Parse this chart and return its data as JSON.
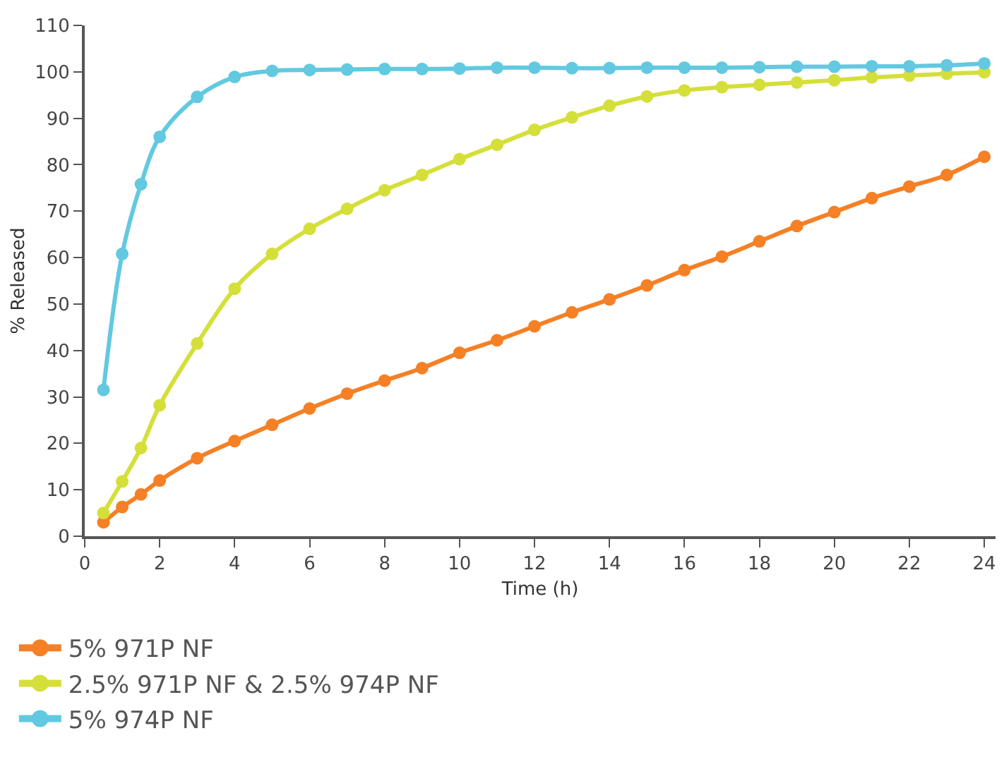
{
  "chart_data": {
    "type": "line",
    "xlabel": "Time (h)",
    "ylabel": "% Released",
    "x": [
      0.5,
      1,
      1.5,
      2,
      3,
      4,
      5,
      6,
      7,
      8,
      9,
      10,
      11,
      12,
      13,
      14,
      15,
      16,
      17,
      18,
      19,
      20,
      21,
      22,
      23,
      24
    ],
    "series": [
      {
        "name": "5% 971P NF",
        "color": "#f58025",
        "values": [
          3,
          6.3,
          9,
          12,
          16.8,
          20.5,
          24,
          27.5,
          30.7,
          33.5,
          36.2,
          39.5,
          42.2,
          45.2,
          48.2,
          51,
          54,
          57.3,
          60.2,
          63.5,
          66.8,
          69.8,
          72.8,
          75.3,
          77.8,
          81.7
        ]
      },
      {
        "name": "2.5% 971P NF & 2.5% 974P NF",
        "color": "#d5df3a",
        "values": [
          5,
          11.8,
          19,
          28.2,
          41.5,
          53.3,
          60.8,
          66.2,
          70.5,
          74.5,
          77.8,
          81.2,
          84.3,
          87.5,
          90.2,
          92.7,
          94.7,
          96,
          96.7,
          97.2,
          97.7,
          98.2,
          98.8,
          99.2,
          99.6,
          99.9
        ]
      },
      {
        "name": "5% 974P NF",
        "color": "#62c9e0",
        "values": [
          31.5,
          60.8,
          75.8,
          86,
          94.6,
          98.9,
          100.2,
          100.4,
          100.5,
          100.6,
          100.6,
          100.7,
          100.9,
          100.9,
          100.8,
          100.8,
          100.9,
          100.9,
          100.9,
          101,
          101.1,
          101.1,
          101.2,
          101.2,
          101.4,
          101.8
        ]
      }
    ],
    "xlim": [
      0,
      24.3
    ],
    "xticks": [
      0,
      2,
      4,
      6,
      8,
      10,
      12,
      14,
      16,
      18,
      20,
      22,
      24
    ],
    "ylim": [
      0,
      110
    ],
    "yticks": [
      0,
      10,
      20,
      30,
      40,
      50,
      60,
      70,
      80,
      90,
      100,
      110
    ],
    "legend": "bottom left",
    "marker": "circle",
    "line_style": "solid"
  }
}
